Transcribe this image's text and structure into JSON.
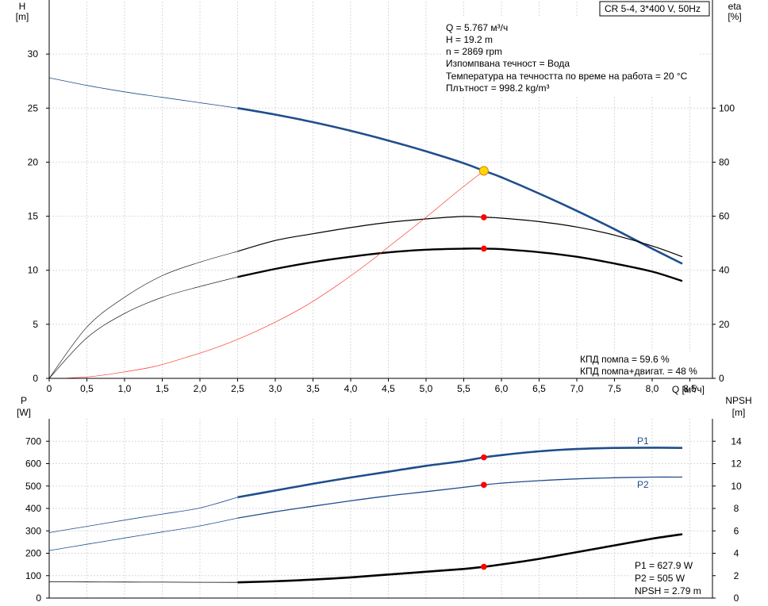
{
  "title_box": "CR 5-4, 3*400 V, 50Hz",
  "info_lines": [
    "Q = 5.767 м³/ч",
    "H = 19.2 m",
    "n = 2869 rpm",
    "Изпомпвана течност = Вода",
    "Температура на течността по време на работа = 20 °C",
    "Плътност = 998.2 kg/m³"
  ],
  "eff_lines": [
    "КПД помпа = 59.6 %",
    "КПД помпа+двигат. = 48 %"
  ],
  "power_lines": [
    "P1 = 627.9 W",
    "P2 = 505 W",
    "NPSH = 2.79 m"
  ],
  "colors": {
    "head": "#1f4e8c",
    "efficiency": "#000000",
    "npsh_req": "#ff3b30",
    "power": "#1f4e8c",
    "npsh": "#000000",
    "point": "#ff0000",
    "duty": "#ffd700"
  },
  "chart_data": [
    {
      "type": "line",
      "axes": {
        "x": {
          "label": "Q [м³/ч]",
          "range": [
            0,
            8.8
          ],
          "ticks": [
            0,
            0.5,
            1.0,
            1.5,
            2.0,
            2.5,
            3.0,
            3.5,
            4.0,
            4.5,
            5.0,
            5.5,
            6.0,
            6.5,
            7.0,
            7.5,
            8.0,
            8.5
          ],
          "tick_labels": [
            "0",
            "0,5",
            "1,0",
            "1,5",
            "2,0",
            "2,5",
            "3,0",
            "3,5",
            "4,0",
            "4,5",
            "5,0",
            "5,5",
            "6,0",
            "6,5",
            "7,0",
            "7,5",
            "8,0",
            "8,5"
          ]
        },
        "y_left": {
          "label_lines": [
            "H",
            "[m]"
          ],
          "range": [
            0,
            35
          ],
          "ticks": [
            0,
            5,
            10,
            15,
            20,
            25,
            30
          ],
          "tick_labels": [
            "0",
            "5",
            "10",
            "15",
            "20",
            "25",
            "30"
          ]
        },
        "y_right": {
          "label_lines": [
            "eta",
            "[%]"
          ],
          "range": [
            0,
            140
          ],
          "ticks": [
            0,
            20,
            40,
            60,
            80,
            100
          ],
          "tick_labels": [
            "0",
            "20",
            "40",
            "60",
            "80",
            "100"
          ]
        }
      },
      "grid": true,
      "series": [
        {
          "role": "head",
          "axis": "left",
          "x": [
            0,
            0.5,
            1,
            1.5,
            2,
            2.5,
            3,
            3.5,
            4,
            4.5,
            5,
            5.5,
            5.767,
            6,
            6.5,
            7,
            7.5,
            8,
            8.4
          ],
          "y": [
            27.8,
            27.1,
            26.5,
            26.0,
            25.5,
            25.0,
            24.4,
            23.7,
            22.9,
            22.0,
            21.0,
            19.9,
            19.2,
            18.6,
            17.1,
            15.5,
            13.8,
            12.0,
            10.6
          ],
          "thin_until": 2.5
        },
        {
          "role": "pump-efficiency",
          "axis": "right",
          "x": [
            0,
            0.5,
            1,
            1.5,
            2,
            2.5,
            3,
            3.5,
            4,
            4.5,
            5,
            5.5,
            5.767,
            6,
            6.5,
            7,
            7.5,
            8,
            8.4
          ],
          "y": [
            0,
            19,
            30,
            38,
            43,
            47,
            51,
            53.5,
            55.8,
            57.7,
            59,
            59.9,
            59.6,
            59.3,
            58,
            56,
            53,
            49,
            45
          ],
          "thin_until": 2.5
        },
        {
          "role": "total-efficiency",
          "axis": "right",
          "x": [
            0,
            0.5,
            1,
            1.5,
            2,
            2.5,
            3,
            3.5,
            4,
            4.5,
            5,
            5.5,
            5.767,
            6,
            6.5,
            7,
            7.5,
            8,
            8.4
          ],
          "y": [
            0,
            15,
            24,
            30,
            34,
            37.5,
            40.5,
            43,
            45,
            46.6,
            47.6,
            48,
            48,
            47.8,
            46.7,
            45,
            42.5,
            39.5,
            36
          ],
          "thin_until": 2.5
        },
        {
          "role": "npshr-thin",
          "axis": "left",
          "x": [
            0.2,
            0.6,
            1.0,
            1.4,
            1.8,
            2.2,
            2.6,
            3.0,
            3.4,
            3.8,
            4.2,
            4.6,
            5.0,
            5.4,
            5.767
          ],
          "y": [
            0,
            0.2,
            0.6,
            1.1,
            1.9,
            2.8,
            3.9,
            5.2,
            6.7,
            8.5,
            10.5,
            12.7,
            14.9,
            17.2,
            19.2
          ],
          "thin_until": 99
        }
      ],
      "points": [
        {
          "axis": "left",
          "x": 5.767,
          "y": 19.2,
          "kind": "duty"
        },
        {
          "axis": "right",
          "x": 5.767,
          "y": 59.6,
          "kind": "marker"
        },
        {
          "axis": "right",
          "x": 5.767,
          "y": 48,
          "kind": "marker"
        }
      ]
    },
    {
      "type": "line",
      "axes": {
        "y_left": {
          "label_lines": [
            "P",
            "[W]"
          ],
          "range": [
            0,
            800
          ],
          "ticks": [
            0,
            100,
            200,
            300,
            400,
            500,
            600,
            700
          ],
          "tick_labels": [
            "0",
            "100",
            "200",
            "300",
            "400",
            "500",
            "600",
            "700"
          ]
        },
        "y_right": {
          "label_lines": [
            "NPSH",
            "[m]"
          ],
          "range": [
            0,
            16
          ],
          "ticks": [
            0,
            2,
            4,
            6,
            8,
            10,
            12,
            14
          ],
          "tick_labels": [
            "0",
            "2",
            "4",
            "6",
            "8",
            "10",
            "12",
            "14"
          ]
        }
      },
      "grid": true,
      "series": [
        {
          "role": "P1",
          "name": "P1",
          "axis": "left",
          "x": [
            0,
            0.5,
            1,
            1.5,
            2,
            2.5,
            3,
            3.5,
            4,
            4.5,
            5,
            5.5,
            5.767,
            6,
            6.5,
            7,
            7.5,
            8,
            8.4
          ],
          "y": [
            292,
            320,
            348,
            375,
            402,
            450,
            480,
            510,
            538,
            564,
            590,
            612,
            627.9,
            638,
            655,
            665,
            670,
            671,
            670
          ],
          "thin_until": 2.5
        },
        {
          "role": "P2",
          "name": "P2",
          "axis": "left",
          "x": [
            0,
            0.5,
            1,
            1.5,
            2,
            2.5,
            3,
            3.5,
            4,
            4.5,
            5,
            5.5,
            5.767,
            6,
            6.5,
            7,
            7.5,
            8,
            8.4
          ],
          "y": [
            212,
            240,
            268,
            295,
            322,
            357,
            385,
            410,
            434,
            456,
            475,
            494,
            505,
            513,
            524,
            532,
            537,
            540,
            540
          ],
          "thin_until": 2.5
        },
        {
          "role": "NPSH",
          "axis": "right",
          "x": [
            0,
            0.5,
            1,
            1.5,
            2,
            2.5,
            3,
            3.5,
            4,
            4.5,
            5,
            5.5,
            5.767,
            6,
            6.5,
            7,
            7.5,
            8,
            8.4
          ],
          "y": [
            1.45,
            1.44,
            1.43,
            1.42,
            1.41,
            1.4,
            1.5,
            1.65,
            1.85,
            2.1,
            2.35,
            2.6,
            2.79,
            3.0,
            3.5,
            4.1,
            4.7,
            5.3,
            5.7
          ],
          "thin_until": 2.5
        }
      ],
      "points": [
        {
          "axis": "left",
          "x": 5.767,
          "y": 627.9,
          "kind": "marker"
        },
        {
          "axis": "left",
          "x": 5.767,
          "y": 505,
          "kind": "marker"
        },
        {
          "axis": "right",
          "x": 5.767,
          "y": 2.79,
          "kind": "marker"
        }
      ]
    }
  ]
}
